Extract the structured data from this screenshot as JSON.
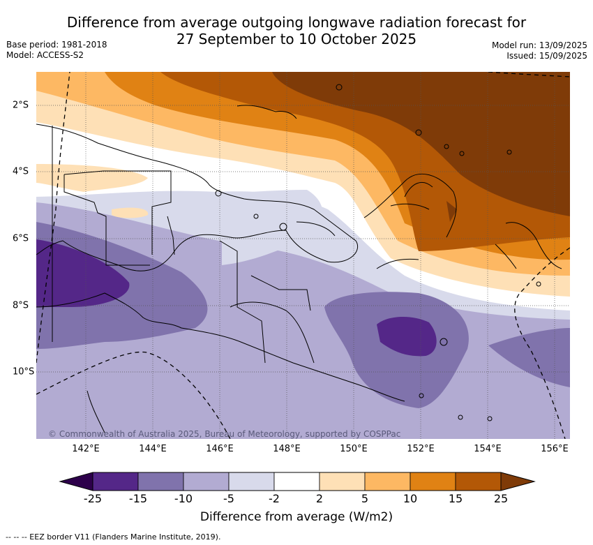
{
  "title_line1": "Difference from average outgoing longwave radiation forecast for",
  "title_line2": "27 September to 10 October 2025",
  "meta_left": {
    "base_period": "Base period: 1981-2018",
    "model": "Model: ACCESS-S2"
  },
  "meta_right": {
    "model_run": "Model run: 13/09/2025",
    "issued": "Issued: 15/09/2025"
  },
  "copyright": "© Commonwealth of Australia 2025, Bureau of Meteorology, supported by COSPPac",
  "lon_ticks": [
    "142°E",
    "144°E",
    "146°E",
    "148°E",
    "150°E",
    "152°E",
    "154°E",
    "156°E"
  ],
  "lat_ticks": [
    "2°S",
    "4°S",
    "6°S",
    "8°S",
    "10°S"
  ],
  "colorbar": {
    "ticks": [
      "-25",
      "-15",
      "-10",
      "-5",
      "-2",
      "2",
      "5",
      "10",
      "15",
      "25"
    ],
    "colors": [
      "#542788",
      "#8073ac",
      "#b2abd2",
      "#d8daeb",
      "#ffffff",
      "#fee0b6",
      "#fdb863",
      "#e08214",
      "#b35806"
    ],
    "under_color": "#2d004b",
    "over_color": "#7f3b08",
    "label": "Difference from average (W/m2)"
  },
  "footnote": "--  --  -- EEZ border V11 (Flanders Marine Institute, 2019)."
}
